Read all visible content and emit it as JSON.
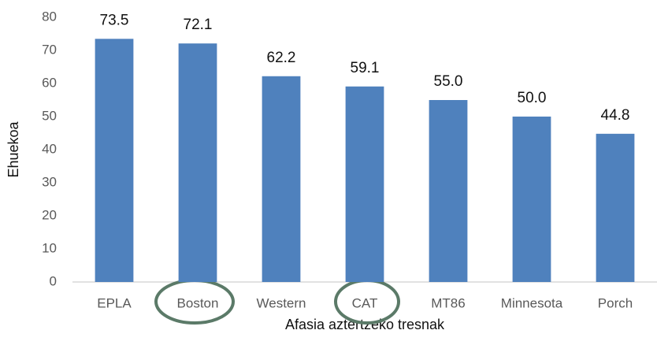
{
  "chart_data": {
    "type": "bar",
    "x_label": "Afasia aztertzeko tresnak",
    "y_label": "Ehuekoa",
    "categories": [
      "EPLA",
      "Boston",
      "Western",
      "CAT",
      "MT86",
      "Minnesota",
      "Porch"
    ],
    "values": [
      73.5,
      72.1,
      62.2,
      59.1,
      55,
      50,
      44.8
    ],
    "value_labels": [
      "73.5",
      "72.1",
      "62.2",
      "59.1",
      "55.0",
      "50.0",
      "44.8"
    ],
    "color": "#4f81bd",
    "ylim": [
      0,
      80
    ],
    "yticks": [
      0,
      10,
      20,
      30,
      40,
      50,
      60,
      70,
      80
    ],
    "grid": false
  }
}
